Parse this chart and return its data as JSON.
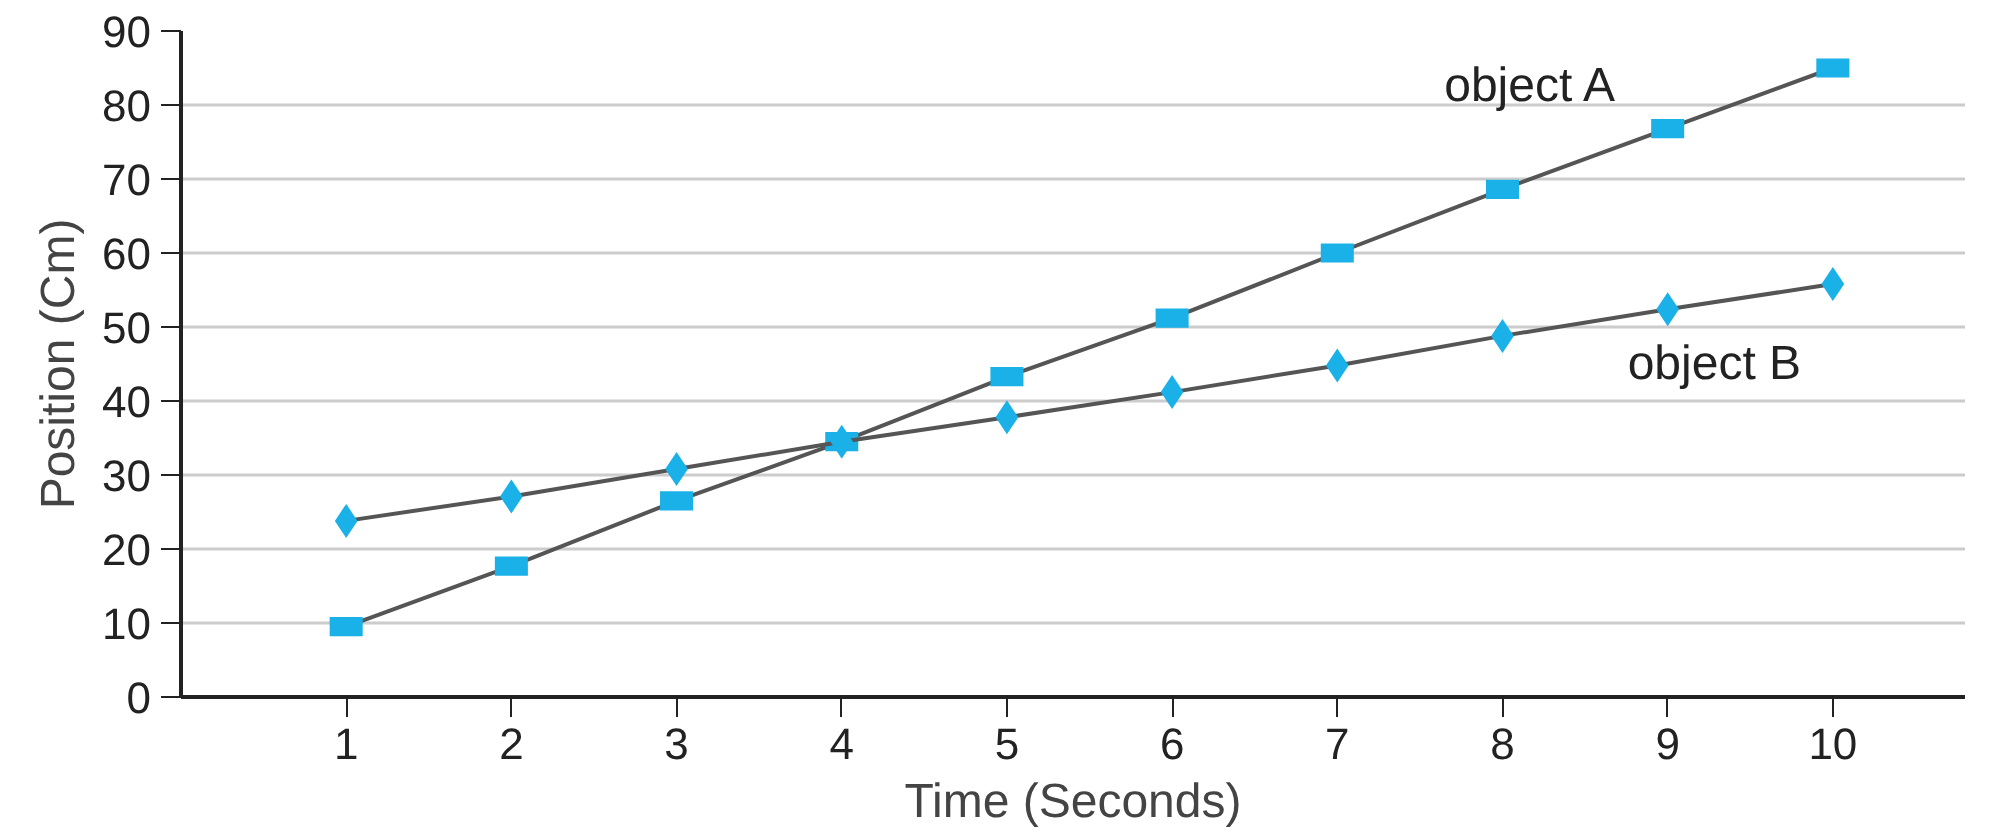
{
  "chart_data": {
    "type": "line",
    "xlabel": "Time (Seconds)",
    "ylabel": "Position (Cm)",
    "xlim": [
      0,
      10.8
    ],
    "xticks": [
      1,
      2,
      3,
      4,
      5,
      6,
      7,
      8,
      9,
      10
    ],
    "ylim": [
      0,
      90
    ],
    "yticks": [
      0,
      10,
      20,
      30,
      40,
      50,
      60,
      70,
      80,
      90
    ],
    "grid": "y",
    "line_style": "solid",
    "series": [
      {
        "name": "object A",
        "color": "#1ab0e8",
        "marker": "square",
        "x": [
          1,
          2,
          3,
          4,
          5,
          6,
          7,
          8,
          9,
          10
        ],
        "values": [
          9.5,
          17.7,
          26.5,
          34.5,
          43.3,
          51.2,
          60,
          68.6,
          76.8,
          85
        ]
      },
      {
        "name": "object B",
        "color": "#1ab0e8",
        "marker": "diamond",
        "x": [
          1,
          2,
          3,
          4,
          5,
          6,
          7,
          8,
          9,
          10
        ],
        "values": [
          23.8,
          27.1,
          30.8,
          34.5,
          37.8,
          41.2,
          44.8,
          48.8,
          52.4,
          55.8
        ]
      }
    ]
  }
}
